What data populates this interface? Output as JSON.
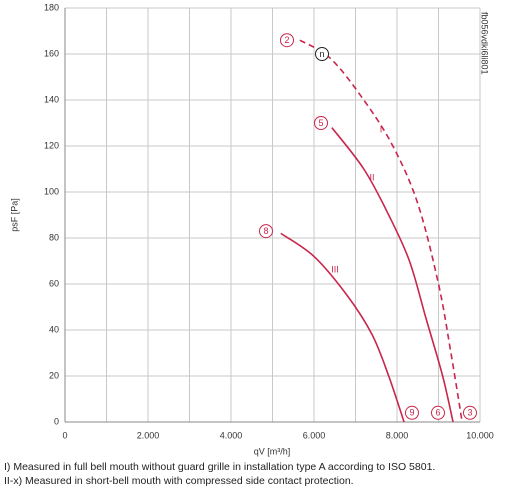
{
  "chart_data": {
    "type": "line",
    "code": "fb056vdki6li801",
    "xlabel": "qV [m³/h]",
    "ylabel": "psF [Pa]",
    "xlim": [
      0,
      10000
    ],
    "ylim": [
      0,
      180
    ],
    "xticks": [
      {
        "value": 0,
        "label": "0"
      },
      {
        "value": 2000,
        "label": "2.000"
      },
      {
        "value": 4000,
        "label": "4.000"
      },
      {
        "value": 6000,
        "label": "6.000"
      },
      {
        "value": 8000,
        "label": "8.000"
      },
      {
        "value": 10000,
        "label": "10.000"
      }
    ],
    "xminor": [
      1000,
      3000,
      5000,
      7000,
      9000
    ],
    "yticks": [
      0,
      20,
      40,
      60,
      80,
      100,
      120,
      140,
      160,
      180
    ],
    "grid": true,
    "series": [
      {
        "name": "I",
        "color": "#c8264c",
        "dashed": true,
        "x": [
          5660,
          6400,
          7200,
          7900,
          8500,
          9000,
          9300,
          9570
        ],
        "values": [
          166,
          158,
          140,
          120,
          95,
          60,
          30,
          0
        ]
      },
      {
        "name": "II",
        "color": "#c8264c",
        "dashed": false,
        "x": [
          6430,
          7200,
          7800,
          8300,
          8700,
          9100,
          9350
        ],
        "values": [
          128,
          110,
          90,
          70,
          45,
          20,
          0
        ]
      },
      {
        "name": "III",
        "color": "#c8264c",
        "dashed": false,
        "x": [
          5200,
          6000,
          6800,
          7400,
          7800,
          8170
        ],
        "values": [
          82,
          72,
          55,
          38,
          20,
          0
        ]
      }
    ],
    "curve_labels": [
      {
        "text": "I",
        "x": 7614,
        "y": 127
      },
      {
        "text": "II",
        "x": 7398,
        "y": 106
      },
      {
        "text": "III",
        "x": 6506,
        "y": 66
      }
    ],
    "markers": [
      {
        "label": "2",
        "x": 5349,
        "y": 166,
        "color": "#c8264c"
      },
      {
        "label": "n",
        "x": 6193,
        "y": 160,
        "color": "#222222"
      },
      {
        "label": "5",
        "x": 6169,
        "y": 130,
        "color": "#c8264c"
      },
      {
        "label": "8",
        "x": 4843,
        "y": 83,
        "color": "#c8264c"
      },
      {
        "label": "9",
        "x": 8361,
        "y": 4,
        "color": "#c8264c"
      },
      {
        "label": "6",
        "x": 8988,
        "y": 4,
        "color": "#c8264c"
      },
      {
        "label": "3",
        "x": 9759,
        "y": 4,
        "color": "#c8264c"
      }
    ],
    "notes": [
      "I) Measured in full bell mouth without guard grille in installation type A according to ISO 5801.",
      "II-x) Measured in short-bell mouth with compressed side contact protection."
    ]
  }
}
